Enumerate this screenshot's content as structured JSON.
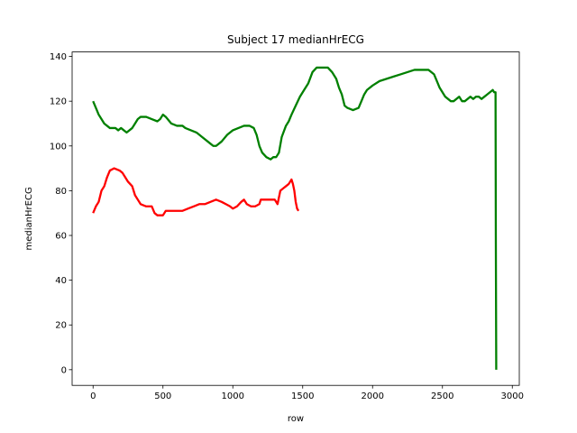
{
  "chart_data": {
    "type": "line",
    "title": "Subject 17 medianHrECG",
    "xlabel": "row",
    "ylabel": "medianHrECG",
    "xlim": [
      -150,
      3050
    ],
    "ylim": [
      -7,
      142
    ],
    "xticks": [
      0,
      500,
      1000,
      1500,
      2000,
      2500,
      3000
    ],
    "yticks": [
      0,
      20,
      40,
      60,
      80,
      100,
      120,
      140
    ],
    "grid": false,
    "legend": "none",
    "series": [
      {
        "color": "#ff0000",
        "points": [
          [
            0,
            70
          ],
          [
            20,
            73
          ],
          [
            40,
            75
          ],
          [
            60,
            80
          ],
          [
            80,
            82
          ],
          [
            100,
            86
          ],
          [
            120,
            89
          ],
          [
            150,
            90
          ],
          [
            190,
            89
          ],
          [
            210,
            88
          ],
          [
            230,
            86
          ],
          [
            250,
            84
          ],
          [
            280,
            82
          ],
          [
            300,
            78
          ],
          [
            320,
            76
          ],
          [
            340,
            74
          ],
          [
            380,
            73
          ],
          [
            420,
            73
          ],
          [
            440,
            70
          ],
          [
            460,
            69
          ],
          [
            500,
            69
          ],
          [
            520,
            71
          ],
          [
            560,
            71
          ],
          [
            600,
            71
          ],
          [
            640,
            71
          ],
          [
            680,
            72
          ],
          [
            720,
            73
          ],
          [
            760,
            74
          ],
          [
            800,
            74
          ],
          [
            840,
            75
          ],
          [
            880,
            76
          ],
          [
            920,
            75
          ],
          [
            950,
            74
          ],
          [
            980,
            73
          ],
          [
            1000,
            72
          ],
          [
            1030,
            73
          ],
          [
            1060,
            75
          ],
          [
            1080,
            76
          ],
          [
            1100,
            74
          ],
          [
            1130,
            73
          ],
          [
            1160,
            73
          ],
          [
            1190,
            74
          ],
          [
            1200,
            76
          ],
          [
            1240,
            76
          ],
          [
            1270,
            76
          ],
          [
            1300,
            76
          ],
          [
            1320,
            74
          ],
          [
            1340,
            80
          ],
          [
            1360,
            81
          ],
          [
            1380,
            82
          ],
          [
            1400,
            83
          ],
          [
            1420,
            85
          ],
          [
            1430,
            83
          ],
          [
            1440,
            80
          ],
          [
            1450,
            75
          ],
          [
            1460,
            72
          ],
          [
            1470,
            71
          ]
        ]
      },
      {
        "color": "#008000",
        "points": [
          [
            0,
            120
          ],
          [
            20,
            117
          ],
          [
            40,
            114
          ],
          [
            60,
            112
          ],
          [
            80,
            110
          ],
          [
            100,
            109
          ],
          [
            120,
            108
          ],
          [
            160,
            108
          ],
          [
            180,
            107
          ],
          [
            200,
            108
          ],
          [
            220,
            107
          ],
          [
            240,
            106
          ],
          [
            260,
            107
          ],
          [
            280,
            108
          ],
          [
            300,
            110
          ],
          [
            320,
            112
          ],
          [
            340,
            113
          ],
          [
            380,
            113
          ],
          [
            420,
            112
          ],
          [
            460,
            111
          ],
          [
            480,
            112
          ],
          [
            500,
            114
          ],
          [
            520,
            113
          ],
          [
            560,
            110
          ],
          [
            600,
            109
          ],
          [
            640,
            109
          ],
          [
            660,
            108
          ],
          [
            700,
            107
          ],
          [
            740,
            106
          ],
          [
            780,
            104
          ],
          [
            820,
            102
          ],
          [
            840,
            101
          ],
          [
            860,
            100
          ],
          [
            880,
            100
          ],
          [
            900,
            101
          ],
          [
            920,
            102
          ],
          [
            960,
            105
          ],
          [
            1000,
            107
          ],
          [
            1040,
            108
          ],
          [
            1080,
            109
          ],
          [
            1120,
            109
          ],
          [
            1150,
            108
          ],
          [
            1170,
            105
          ],
          [
            1190,
            100
          ],
          [
            1210,
            97
          ],
          [
            1240,
            95
          ],
          [
            1270,
            94
          ],
          [
            1290,
            95
          ],
          [
            1310,
            95
          ],
          [
            1330,
            97
          ],
          [
            1350,
            104
          ],
          [
            1380,
            109
          ],
          [
            1400,
            111
          ],
          [
            1420,
            114
          ],
          [
            1450,
            118
          ],
          [
            1480,
            122
          ],
          [
            1510,
            125
          ],
          [
            1540,
            128
          ],
          [
            1570,
            133
          ],
          [
            1600,
            135
          ],
          [
            1640,
            135
          ],
          [
            1680,
            135
          ],
          [
            1710,
            133
          ],
          [
            1740,
            130
          ],
          [
            1760,
            126
          ],
          [
            1780,
            123
          ],
          [
            1800,
            118
          ],
          [
            1820,
            117
          ],
          [
            1860,
            116
          ],
          [
            1900,
            117
          ],
          [
            1920,
            120
          ],
          [
            1940,
            123
          ],
          [
            1960,
            125
          ],
          [
            2000,
            127
          ],
          [
            2050,
            129
          ],
          [
            2100,
            130
          ],
          [
            2150,
            131
          ],
          [
            2200,
            132
          ],
          [
            2250,
            133
          ],
          [
            2300,
            134
          ],
          [
            2350,
            134
          ],
          [
            2400,
            134
          ],
          [
            2440,
            132
          ],
          [
            2460,
            129
          ],
          [
            2480,
            126
          ],
          [
            2500,
            124
          ],
          [
            2520,
            122
          ],
          [
            2540,
            121
          ],
          [
            2560,
            120
          ],
          [
            2580,
            120
          ],
          [
            2600,
            121
          ],
          [
            2620,
            122
          ],
          [
            2640,
            120
          ],
          [
            2660,
            120
          ],
          [
            2680,
            121
          ],
          [
            2700,
            122
          ],
          [
            2720,
            121
          ],
          [
            2740,
            122
          ],
          [
            2760,
            122
          ],
          [
            2780,
            121
          ],
          [
            2800,
            122
          ],
          [
            2820,
            123
          ],
          [
            2840,
            124
          ],
          [
            2860,
            125
          ],
          [
            2870,
            124
          ],
          [
            2880,
            124
          ],
          [
            2882,
            60
          ],
          [
            2885,
            0
          ]
        ]
      }
    ]
  }
}
